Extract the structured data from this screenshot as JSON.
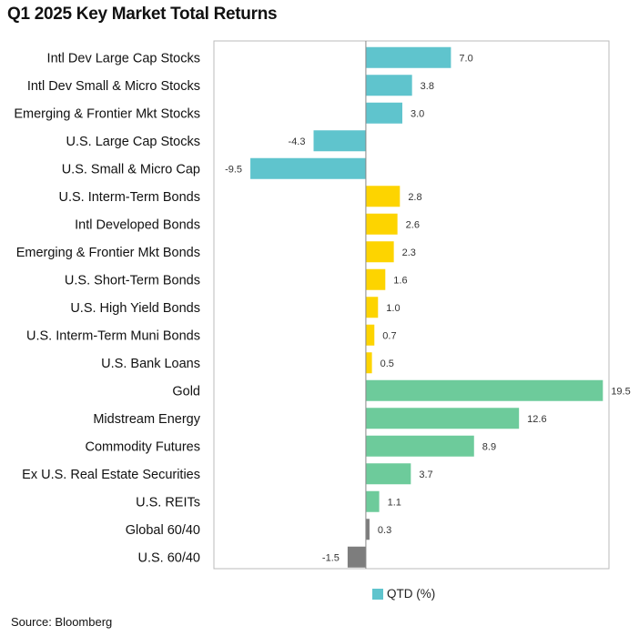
{
  "page": {
    "title": "Q1 2025 Key Market Total Returns",
    "source": "Source: Bloomberg"
  },
  "colors": {
    "equity": "#5fc4cd",
    "bonds": "#fdd400",
    "real_assets": "#6dcb9b",
    "balanced": "#7d7d7d",
    "axis": "#888888",
    "frame": "#bbbbbb"
  },
  "chart_data": {
    "type": "bar",
    "orientation": "horizontal",
    "title": "Q1 2025 Key Market Total Returns",
    "xlim": [
      -12.5,
      20
    ],
    "grid": false,
    "legend": {
      "placement": "bottom-center",
      "entries": [
        {
          "name": "QTD (%)",
          "color": "#5fc4cd"
        }
      ]
    },
    "series": [
      {
        "name": "QTD (%)",
        "points": [
          {
            "category": "Intl Dev Large Cap Stocks",
            "value": 7.0,
            "label": "7.0",
            "color": "#5fc4cd"
          },
          {
            "category": "Intl Dev Small & Micro Stocks",
            "value": 3.8,
            "label": "3.8",
            "color": "#5fc4cd"
          },
          {
            "category": "Emerging & Frontier Mkt Stocks",
            "value": 3.0,
            "label": "3.0",
            "color": "#5fc4cd"
          },
          {
            "category": "U.S. Large Cap Stocks",
            "value": -4.3,
            "label": "-4.3",
            "color": "#5fc4cd"
          },
          {
            "category": "U.S. Small & Micro Cap",
            "value": -9.5,
            "label": "-9.5",
            "color": "#5fc4cd"
          },
          {
            "category": "U.S. Interm-Term Bonds",
            "value": 2.8,
            "label": "2.8",
            "color": "#fdd400"
          },
          {
            "category": "Intl Developed Bonds",
            "value": 2.6,
            "label": "2.6",
            "color": "#fdd400"
          },
          {
            "category": "Emerging & Frontier Mkt Bonds",
            "value": 2.3,
            "label": "2.3",
            "color": "#fdd400"
          },
          {
            "category": "U.S. Short-Term Bonds",
            "value": 1.6,
            "label": "1.6",
            "color": "#fdd400"
          },
          {
            "category": "U.S. High Yield Bonds",
            "value": 1.0,
            "label": "1.0",
            "color": "#fdd400"
          },
          {
            "category": "U.S. Interm-Term Muni Bonds",
            "value": 0.7,
            "label": "0.7",
            "color": "#fdd400"
          },
          {
            "category": "U.S. Bank Loans",
            "value": 0.5,
            "label": "0.5",
            "color": "#fdd400"
          },
          {
            "category": "Gold",
            "value": 19.5,
            "label": "19.5",
            "color": "#6dcb9b"
          },
          {
            "category": "Midstream Energy",
            "value": 12.6,
            "label": "12.6",
            "color": "#6dcb9b"
          },
          {
            "category": "Commodity Futures",
            "value": 8.9,
            "label": "8.9",
            "color": "#6dcb9b"
          },
          {
            "category": "Ex U.S. Real Estate Securities",
            "value": 3.7,
            "label": "3.7",
            "color": "#6dcb9b"
          },
          {
            "category": "U.S. REITs",
            "value": 1.1,
            "label": "1.1",
            "color": "#6dcb9b"
          },
          {
            "category": "Global 60/40",
            "value": 0.3,
            "label": "0.3",
            "color": "#7d7d7d"
          },
          {
            "category": "U.S. 60/40",
            "value": -1.5,
            "label": "-1.5",
            "color": "#7d7d7d"
          }
        ]
      }
    ]
  }
}
